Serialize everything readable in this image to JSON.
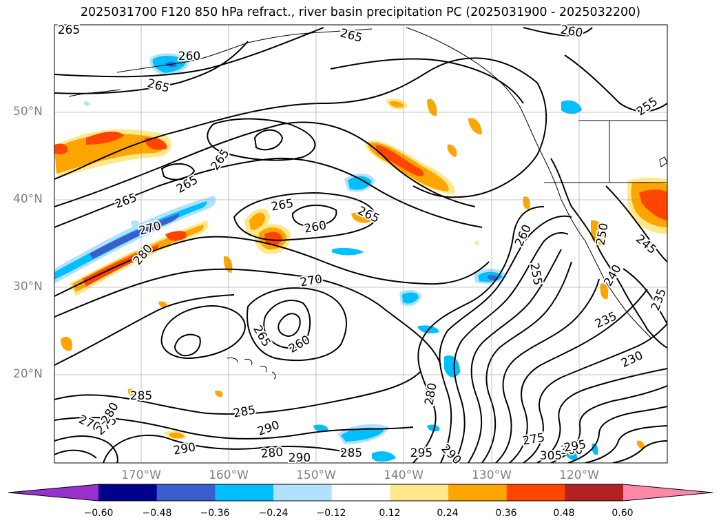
{
  "title": "2025031700 F120 850 hPa refract., river basin precipitation PC (2025031900 - 2025032200)",
  "lat_labels": [
    "50°N",
    "40°N",
    "30°N",
    "20°N"
  ],
  "lon_labels": [
    "170°W",
    "160°W",
    "150°W",
    "140°W",
    "130°W",
    "120°W"
  ],
  "colorbar": {
    "colors": [
      "#9932cc",
      "#00008b",
      "#3a5fcd",
      "#00bfff",
      "#b0e2ff",
      "#ffffff",
      "#ffe88c",
      "#ffa500",
      "#ff4500",
      "#b22222",
      "#ff88aa"
    ],
    "ticks": [
      "−0.60",
      "−0.48",
      "−0.36",
      "−0.24",
      "−0.12",
      "0.12",
      "0.24",
      "0.36",
      "0.48",
      "0.60"
    ]
  },
  "contour_labels": [
    {
      "text": "265"
    },
    {
      "text": "265"
    },
    {
      "text": "260"
    },
    {
      "text": "265"
    },
    {
      "text": "260"
    },
    {
      "text": "255"
    },
    {
      "text": "265"
    },
    {
      "text": "265"
    },
    {
      "text": "265"
    },
    {
      "text": "270"
    },
    {
      "text": "280"
    },
    {
      "text": "265"
    },
    {
      "text": "260"
    },
    {
      "text": "265"
    },
    {
      "text": "270"
    },
    {
      "text": "265"
    },
    {
      "text": "260"
    },
    {
      "text": "260"
    },
    {
      "text": "255"
    },
    {
      "text": "250"
    },
    {
      "text": "245"
    },
    {
      "text": "240"
    },
    {
      "text": "235"
    },
    {
      "text": "235"
    },
    {
      "text": "230"
    },
    {
      "text": "285"
    },
    {
      "text": "285"
    },
    {
      "text": "290"
    },
    {
      "text": "290"
    },
    {
      "text": "280"
    },
    {
      "text": "290"
    },
    {
      "text": "285"
    },
    {
      "text": "295"
    },
    {
      "text": "290"
    },
    {
      "text": "280"
    },
    {
      "text": "275"
    },
    {
      "text": "300"
    },
    {
      "text": "305"
    },
    {
      "text": "295"
    },
    {
      "text": "270"
    },
    {
      "text": "275"
    },
    {
      "text": "280"
    }
  ]
}
